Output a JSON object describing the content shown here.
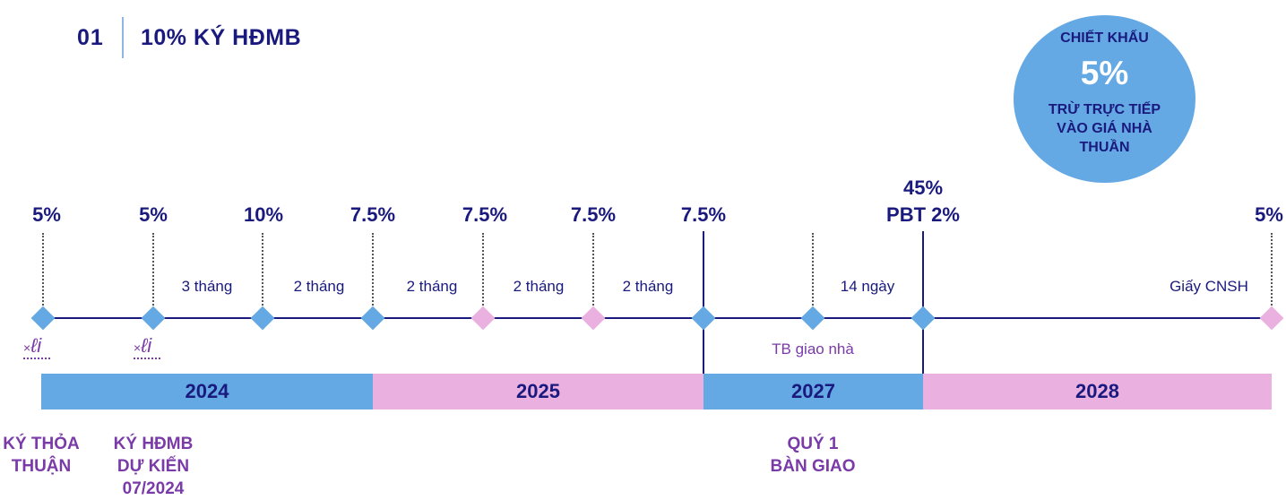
{
  "header": {
    "number": "01",
    "title": "10% KÝ HĐMB"
  },
  "discount": {
    "line1": "CHIẾT KHẤU",
    "percent": "5%",
    "line3": "TRỪ TRỰC TIẾP VÀO GIÁ NHÀ THUẦN"
  },
  "milestones": [
    {
      "pct": "5%"
    },
    {
      "pct": "5%"
    },
    {
      "pct": "10%"
    },
    {
      "pct": "7.5%"
    },
    {
      "pct": "7.5%"
    },
    {
      "pct": "7.5%"
    },
    {
      "pct": "7.5%"
    },
    {
      "pct_line1": "45%",
      "pct_line2": "PBT 2%"
    },
    {
      "pct": "5%"
    }
  ],
  "intervals": [
    "3 tháng",
    "2 tháng",
    "2 tháng",
    "2 tháng",
    "2 tháng",
    "14 ngày",
    "Giấy CNSH"
  ],
  "handover_notice": "TB giao nhà",
  "years": [
    "2024",
    "2025",
    "2027",
    "2028"
  ],
  "signature_symbol": "ℓi",
  "signature_x": "×",
  "bottom_labels": {
    "sign_agreement": [
      "KÝ THỎA",
      "THUẬN"
    ],
    "sign_contract": [
      "KÝ HĐMB",
      "DỰ KIẾN",
      "07/2024"
    ],
    "handover": [
      "QUÝ 1",
      "BÀN GIAO"
    ]
  },
  "colors": {
    "navy": "#1a1a7e",
    "blue": "#64a8e4",
    "pink": "#eab0e0",
    "purple": "#7a3aa8"
  }
}
